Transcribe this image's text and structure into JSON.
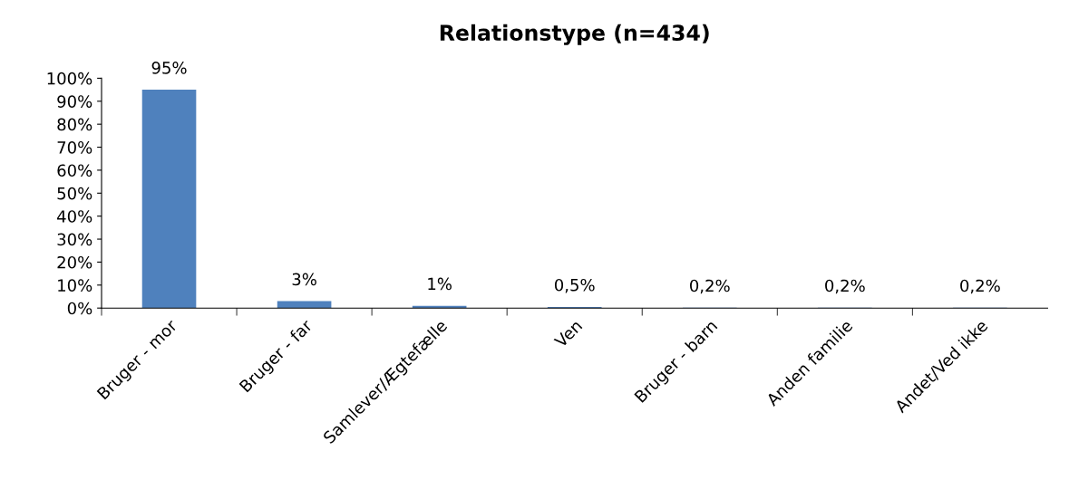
{
  "chart_data": {
    "type": "bar",
    "title": "Relationstype (n=434)",
    "categories": [
      "Bruger - mor",
      "Bruger - far",
      "Samlever/Ægtefælle",
      "Ven",
      "Bruger - barn",
      "Anden familie",
      "Andet/Ved ikke"
    ],
    "values": [
      95,
      3,
      1,
      0.5,
      0.2,
      0.2,
      0.2
    ],
    "value_labels": [
      "95%",
      "3%",
      "1%",
      "0,5%",
      "0,2%",
      "0,2%",
      "0,2%"
    ],
    "color": "#4f81bd",
    "ylim": [
      0,
      100
    ],
    "yticks": [
      {
        "value": 0,
        "label": "0%"
      },
      {
        "value": 10,
        "label": "10%"
      },
      {
        "value": 20,
        "label": "20%"
      },
      {
        "value": 30,
        "label": "30%"
      },
      {
        "value": 40,
        "label": "40%"
      },
      {
        "value": 50,
        "label": "50%"
      },
      {
        "value": 60,
        "label": "60%"
      },
      {
        "value": 70,
        "label": "70%"
      },
      {
        "value": 80,
        "label": "80%"
      },
      {
        "value": 90,
        "label": "90%"
      },
      {
        "value": 100,
        "label": "100%"
      }
    ],
    "grid": false,
    "legend": false
  }
}
